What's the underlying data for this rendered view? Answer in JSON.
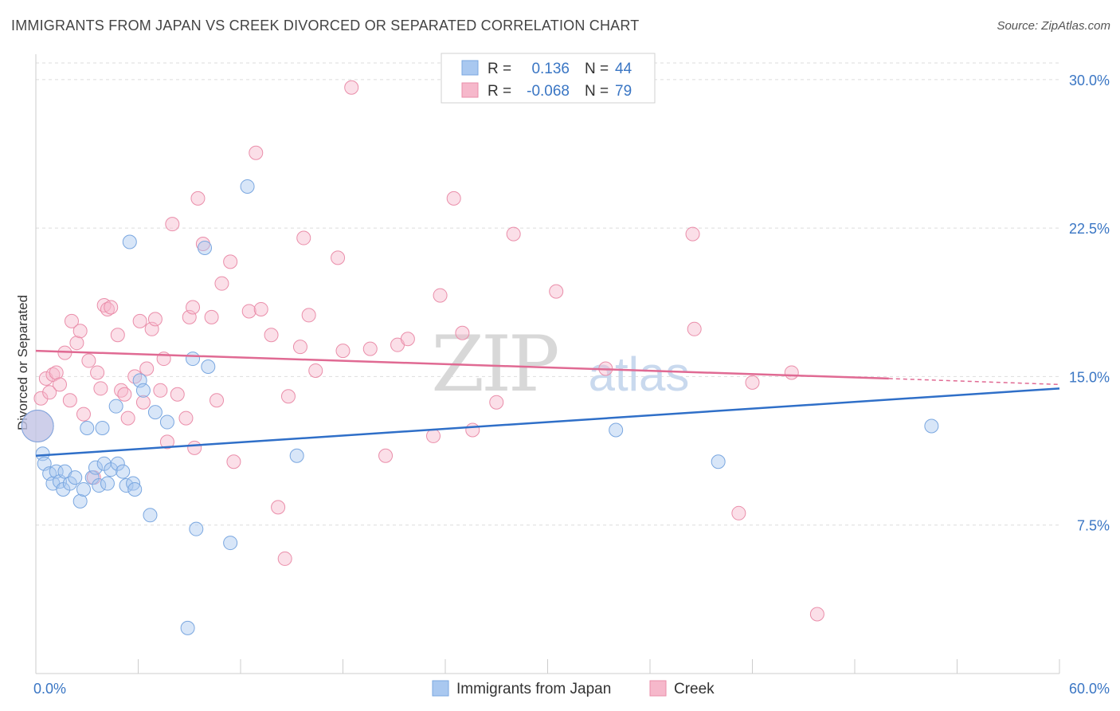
{
  "header": {
    "title": "IMMIGRANTS FROM JAPAN VS CREEK DIVORCED OR SEPARATED CORRELATION CHART",
    "source": "Source: ZipAtlas.com"
  },
  "colors": {
    "blue": "#3a76c4",
    "blue_fill": "#a9c8f0",
    "blue_line": "#2f6fc8",
    "pink_fill": "#f6b8cb",
    "pink_line": "#e06a93",
    "grid": "#dddddd"
  },
  "chart_data": {
    "type": "scatter",
    "title": "IMMIGRANTS FROM JAPAN VS CREEK DIVORCED OR SEPARATED CORRELATION CHART",
    "xlabel": "",
    "ylabel": "Divorced or Separated",
    "xlim": [
      0,
      60
    ],
    "ylim": [
      0,
      31
    ],
    "x_tick_labels": [
      "0.0%",
      "60.0%"
    ],
    "y_ticks": [
      7.5,
      15.0,
      22.5,
      30.0
    ],
    "y_tick_labels": [
      "7.5%",
      "15.0%",
      "22.5%",
      "30.0%"
    ],
    "grid": true,
    "watermark": {
      "part1": "ZIP",
      "part2": "atlas"
    },
    "legend": {
      "rows": [
        {
          "r_label": "R =",
          "r_value": "0.136",
          "n_label": "N =",
          "n_value": "44"
        },
        {
          "r_label": "R =",
          "r_value": "-0.068",
          "n_label": "N =",
          "n_value": "79"
        }
      ]
    },
    "series": [
      {
        "name": "Immigrants from Japan",
        "R": 0.136,
        "N": 44,
        "trend": {
          "x": [
            0,
            60
          ],
          "y": [
            11.0,
            14.4
          ]
        },
        "points": [
          [
            0.1,
            12.5
          ],
          [
            0.4,
            11.1
          ],
          [
            0.5,
            10.6
          ],
          [
            0.8,
            10.1
          ],
          [
            1.0,
            9.6
          ],
          [
            1.2,
            10.2
          ],
          [
            1.4,
            9.7
          ],
          [
            1.6,
            9.3
          ],
          [
            1.7,
            10.2
          ],
          [
            2.0,
            9.6
          ],
          [
            2.3,
            9.9
          ],
          [
            2.6,
            8.7
          ],
          [
            2.8,
            9.3
          ],
          [
            3.0,
            12.4
          ],
          [
            3.3,
            9.9
          ],
          [
            3.5,
            10.4
          ],
          [
            3.7,
            9.5
          ],
          [
            3.9,
            12.4
          ],
          [
            4.0,
            10.6
          ],
          [
            4.2,
            9.6
          ],
          [
            4.4,
            10.3
          ],
          [
            4.7,
            13.5
          ],
          [
            4.8,
            10.6
          ],
          [
            5.1,
            10.2
          ],
          [
            5.3,
            9.5
          ],
          [
            5.5,
            21.8
          ],
          [
            5.7,
            9.6
          ],
          [
            5.8,
            9.3
          ],
          [
            6.1,
            14.8
          ],
          [
            6.3,
            14.3
          ],
          [
            6.7,
            8.0
          ],
          [
            7.0,
            13.2
          ],
          [
            7.7,
            12.7
          ],
          [
            8.9,
            2.3
          ],
          [
            9.2,
            15.9
          ],
          [
            9.4,
            7.3
          ],
          [
            9.9,
            21.5
          ],
          [
            10.1,
            15.5
          ],
          [
            11.4,
            6.6
          ],
          [
            12.4,
            24.6
          ],
          [
            15.3,
            11.0
          ],
          [
            34.0,
            12.3
          ],
          [
            40.0,
            10.7
          ],
          [
            52.5,
            12.5
          ]
        ]
      },
      {
        "name": "Creek",
        "R": -0.068,
        "N": 79,
        "trend": {
          "x": [
            0,
            50.0
          ],
          "y": [
            16.3,
            14.9
          ]
        },
        "trend_dashed": {
          "x": [
            50.0,
            60
          ],
          "y": [
            14.9,
            14.6
          ]
        },
        "points": [
          [
            0.1,
            12.5
          ],
          [
            0.3,
            13.9
          ],
          [
            0.6,
            14.9
          ],
          [
            0.8,
            14.2
          ],
          [
            1.0,
            15.1
          ],
          [
            1.2,
            15.2
          ],
          [
            1.4,
            14.6
          ],
          [
            1.7,
            16.2
          ],
          [
            2.0,
            13.8
          ],
          [
            2.1,
            17.8
          ],
          [
            2.4,
            16.7
          ],
          [
            2.6,
            17.3
          ],
          [
            2.8,
            13.1
          ],
          [
            3.1,
            15.8
          ],
          [
            3.4,
            9.9
          ],
          [
            3.6,
            15.2
          ],
          [
            3.8,
            14.4
          ],
          [
            4.0,
            18.6
          ],
          [
            4.2,
            18.4
          ],
          [
            4.4,
            18.5
          ],
          [
            4.8,
            17.1
          ],
          [
            5.0,
            14.3
          ],
          [
            5.2,
            14.1
          ],
          [
            5.4,
            12.9
          ],
          [
            5.8,
            15.0
          ],
          [
            6.1,
            17.8
          ],
          [
            6.3,
            13.7
          ],
          [
            6.5,
            15.4
          ],
          [
            6.8,
            17.4
          ],
          [
            7.0,
            17.9
          ],
          [
            7.3,
            14.3
          ],
          [
            7.5,
            15.9
          ],
          [
            7.7,
            11.7
          ],
          [
            8.0,
            22.7
          ],
          [
            8.3,
            14.1
          ],
          [
            8.8,
            12.9
          ],
          [
            9.0,
            18.0
          ],
          [
            9.2,
            18.5
          ],
          [
            9.3,
            11.4
          ],
          [
            9.5,
            24.0
          ],
          [
            9.8,
            21.7
          ],
          [
            10.3,
            18.0
          ],
          [
            10.6,
            13.8
          ],
          [
            10.9,
            19.7
          ],
          [
            11.4,
            20.8
          ],
          [
            11.6,
            10.7
          ],
          [
            12.5,
            18.3
          ],
          [
            12.9,
            26.3
          ],
          [
            13.2,
            18.4
          ],
          [
            13.8,
            17.1
          ],
          [
            14.2,
            8.4
          ],
          [
            14.6,
            5.8
          ],
          [
            14.8,
            14.0
          ],
          [
            15.5,
            16.5
          ],
          [
            15.7,
            22.0
          ],
          [
            16.0,
            18.1
          ],
          [
            16.4,
            15.3
          ],
          [
            17.7,
            21.0
          ],
          [
            18.0,
            16.3
          ],
          [
            18.5,
            29.6
          ],
          [
            19.6,
            16.4
          ],
          [
            20.5,
            11.0
          ],
          [
            21.2,
            16.6
          ],
          [
            21.8,
            16.9
          ],
          [
            23.3,
            12.0
          ],
          [
            23.7,
            19.1
          ],
          [
            24.5,
            24.0
          ],
          [
            25.0,
            17.2
          ],
          [
            25.6,
            12.3
          ],
          [
            27.0,
            13.7
          ],
          [
            28.0,
            22.2
          ],
          [
            30.5,
            19.3
          ],
          [
            33.4,
            15.4
          ],
          [
            38.5,
            22.2
          ],
          [
            41.2,
            8.1
          ],
          [
            44.3,
            15.2
          ],
          [
            38.6,
            17.4
          ],
          [
            42.0,
            14.7
          ],
          [
            45.8,
            3.0
          ]
        ]
      }
    ]
  }
}
